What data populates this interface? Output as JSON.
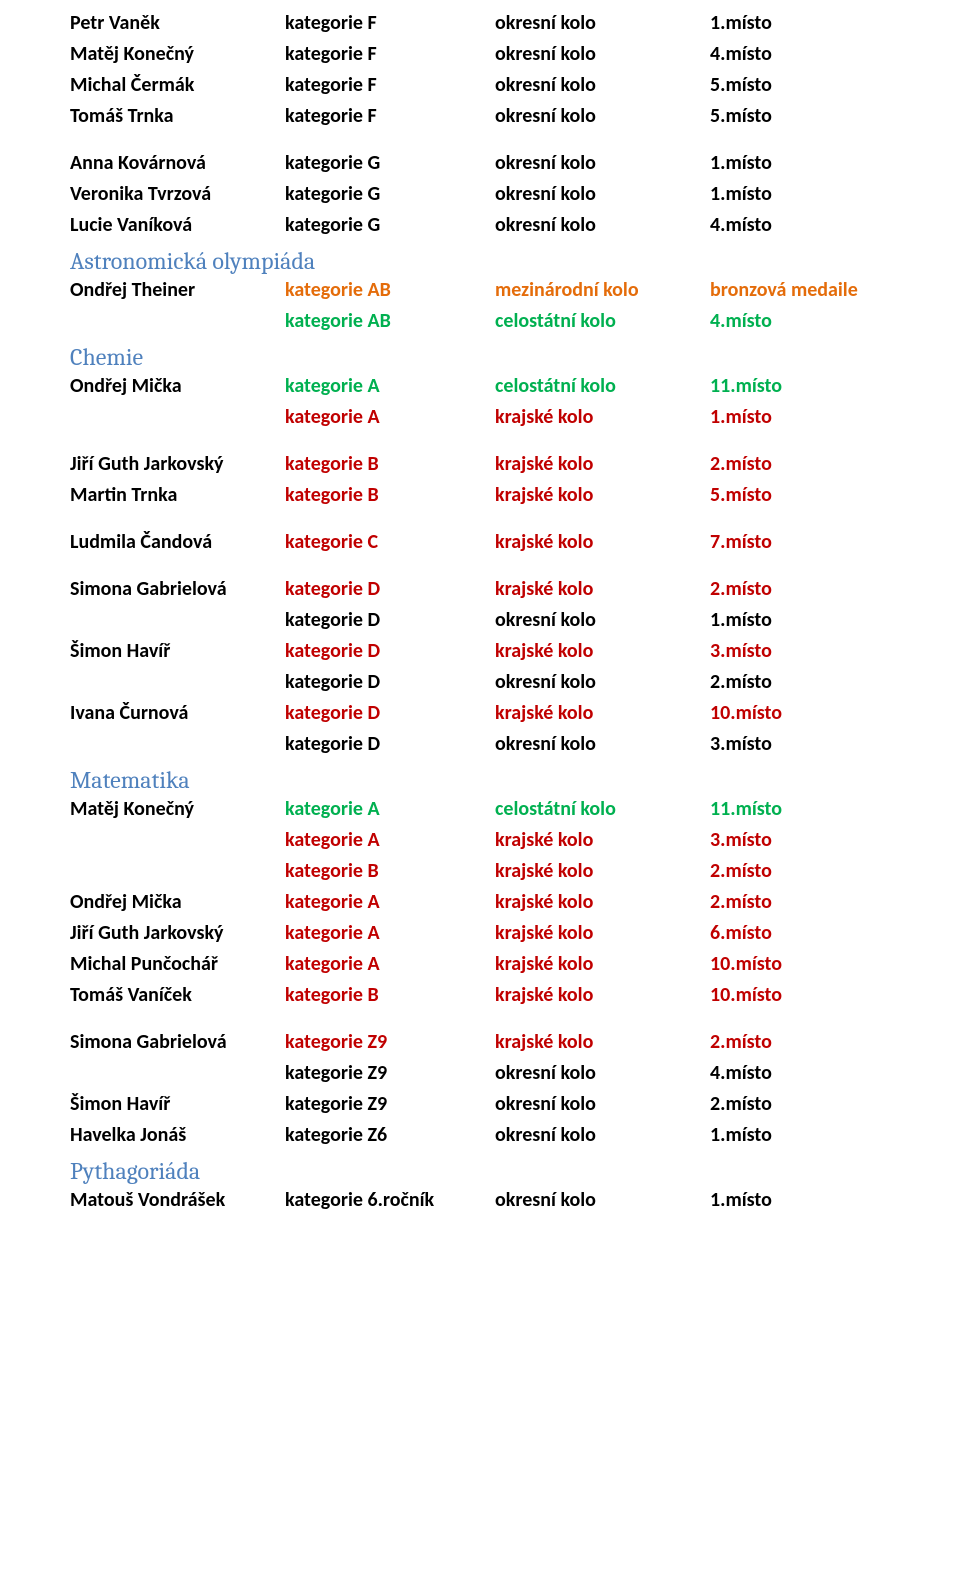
{
  "colors": {
    "black": "#000000",
    "red": "#c00000",
    "green": "#00b050",
    "orange": "#e46c0a",
    "heading": "#4f81bd"
  },
  "groups": [
    {
      "type": "rows",
      "rows": [
        {
          "c1": "Petr Vaněk",
          "c2": "kategorie F",
          "c3": "okresní kolo",
          "c4": "1.místo",
          "c2color": "#000000",
          "c3color": "#000000",
          "c4color": "#000000"
        },
        {
          "c1": "Matěj Konečný",
          "c2": "kategorie F",
          "c3": "okresní kolo",
          "c4": "4.místo",
          "c2color": "#000000",
          "c3color": "#000000",
          "c4color": "#000000"
        },
        {
          "c1": "Michal Čermák",
          "c2": "kategorie F",
          "c3": "okresní kolo",
          "c4": "5.místo",
          "c2color": "#000000",
          "c3color": "#000000",
          "c4color": "#000000"
        },
        {
          "c1": "Tomáš Trnka",
          "c2": "kategorie F",
          "c3": "okresní kolo",
          "c4": "5.místo",
          "c2color": "#000000",
          "c3color": "#000000",
          "c4color": "#000000"
        }
      ]
    },
    {
      "type": "gap"
    },
    {
      "type": "rows",
      "rows": [
        {
          "c1": "Anna Kovárnová",
          "c2": "kategorie G",
          "c3": "okresní kolo",
          "c4": "1.místo",
          "c2color": "#000000",
          "c3color": "#000000",
          "c4color": "#000000"
        },
        {
          "c1": "Veronika Tvrzová",
          "c2": "kategorie G",
          "c3": "okresní kolo",
          "c4": "1.místo",
          "c2color": "#000000",
          "c3color": "#000000",
          "c4color": "#000000"
        },
        {
          "c1": "Lucie Vaníková",
          "c2": "kategorie G",
          "c3": "okresní kolo",
          "c4": "4.místo",
          "c2color": "#000000",
          "c3color": "#000000",
          "c4color": "#000000"
        }
      ]
    },
    {
      "type": "heading",
      "text": "Astronomická olympiáda"
    },
    {
      "type": "rows",
      "rows": [
        {
          "c1": "Ondřej Theiner",
          "c2": "kategorie AB",
          "c3": "mezinárodní kolo",
          "c4": "bronzová medaile",
          "c2color": "#e46c0a",
          "c3color": "#e46c0a",
          "c4color": "#e46c0a"
        },
        {
          "c1": "",
          "c2": "kategorie AB",
          "c3": "celostátní kolo",
          "c4": "4.místo",
          "c2color": "#00b050",
          "c3color": "#00b050",
          "c4color": "#00b050"
        }
      ]
    },
    {
      "type": "heading",
      "text": "Chemie"
    },
    {
      "type": "rows",
      "rows": [
        {
          "c1": "Ondřej Mička",
          "c2": "kategorie A",
          "c3": "celostátní kolo",
          "c4": "11.místo",
          "c2color": "#00b050",
          "c3color": "#00b050",
          "c4color": "#00b050"
        },
        {
          "c1": "",
          "c2": "kategorie A",
          "c3": "krajské kolo",
          "c4": "1.místo",
          "c2color": "#c00000",
          "c3color": "#c00000",
          "c4color": "#c00000"
        }
      ]
    },
    {
      "type": "gap"
    },
    {
      "type": "rows",
      "rows": [
        {
          "c1": "Jiří Guth Jarkovský",
          "c2": "kategorie B",
          "c3": "krajské kolo",
          "c4": "2.místo",
          "c2color": "#c00000",
          "c3color": "#c00000",
          "c4color": "#c00000"
        },
        {
          "c1": "Martin Trnka",
          "c2": "kategorie B",
          "c3": "krajské kolo",
          "c4": "5.místo",
          "c2color": "#c00000",
          "c3color": "#c00000",
          "c4color": "#c00000"
        }
      ]
    },
    {
      "type": "gap"
    },
    {
      "type": "rows",
      "rows": [
        {
          "c1": "Ludmila Čandová",
          "c2": "kategorie C",
          "c3": "krajské kolo",
          "c4": "7.místo",
          "c2color": "#c00000",
          "c3color": "#c00000",
          "c4color": "#c00000"
        }
      ]
    },
    {
      "type": "gap"
    },
    {
      "type": "rows",
      "rows": [
        {
          "c1": "Simona Gabrielová",
          "c2": "kategorie D",
          "c3": "krajské kolo",
          "c4": "2.místo",
          "c2color": "#c00000",
          "c3color": "#c00000",
          "c4color": "#c00000"
        },
        {
          "c1": "",
          "c2": "kategorie D",
          "c3": "okresní kolo",
          "c4": "1.místo",
          "c2color": "#000000",
          "c3color": "#000000",
          "c4color": "#000000"
        },
        {
          "c1": "Šimon Havíř",
          "c2": "kategorie D",
          "c3": "krajské kolo",
          "c4": "3.místo",
          "c2color": "#c00000",
          "c3color": "#c00000",
          "c4color": "#c00000"
        },
        {
          "c1": "",
          "c2": "kategorie D",
          "c3": "okresní kolo",
          "c4": "2.místo",
          "c2color": "#000000",
          "c3color": "#000000",
          "c4color": "#000000"
        },
        {
          "c1": "Ivana Čurnová",
          "c2": "kategorie D",
          "c3": "krajské kolo",
          "c4": "10.místo",
          "c2color": "#c00000",
          "c3color": "#c00000",
          "c4color": "#c00000"
        },
        {
          "c1": "",
          "c2": "kategorie D",
          "c3": "okresní kolo",
          "c4": "3.místo",
          "c2color": "#000000",
          "c3color": "#000000",
          "c4color": "#000000"
        }
      ]
    },
    {
      "type": "heading",
      "text": "Matematika"
    },
    {
      "type": "rows",
      "rows": [
        {
          "c1": "Matěj Konečný",
          "c2": "kategorie A",
          "c3": "celostátní kolo",
          "c4": "11.místo",
          "c2color": "#00b050",
          "c3color": "#00b050",
          "c4color": "#00b050"
        },
        {
          "c1": "",
          "c2": "kategorie A",
          "c3": "krajské kolo",
          "c4": "3.místo",
          "c2color": "#c00000",
          "c3color": "#c00000",
          "c4color": "#c00000"
        },
        {
          "c1": "",
          "c2": "kategorie B",
          "c3": "krajské kolo",
          "c4": "2.místo",
          "c2color": "#c00000",
          "c3color": "#c00000",
          "c4color": "#c00000"
        },
        {
          "c1": "Ondřej Mička",
          "c2": "kategorie A",
          "c3": "krajské kolo",
          "c4": "2.místo",
          "c2color": "#c00000",
          "c3color": "#c00000",
          "c4color": "#c00000"
        },
        {
          "c1": "Jiří Guth Jarkovský",
          "c2": "kategorie A",
          "c3": "krajské kolo",
          "c4": "6.místo",
          "c2color": "#c00000",
          "c3color": "#c00000",
          "c4color": "#c00000"
        },
        {
          "c1": "Michal Punčochář",
          "c2": "kategorie A",
          "c3": "krajské kolo",
          "c4": "10.místo",
          "c2color": "#c00000",
          "c3color": "#c00000",
          "c4color": "#c00000"
        },
        {
          "c1": "Tomáš Vaníček",
          "c2": "kategorie B",
          "c3": "krajské kolo",
          "c4": "10.místo",
          "c2color": "#c00000",
          "c3color": "#c00000",
          "c4color": "#c00000"
        }
      ]
    },
    {
      "type": "gap"
    },
    {
      "type": "rows",
      "rows": [
        {
          "c1": "Simona Gabrielová",
          "c2": "kategorie Z9",
          "c3": "krajské kolo",
          "c4": "2.místo",
          "c2color": "#c00000",
          "c3color": "#c00000",
          "c4color": "#c00000"
        },
        {
          "c1": "",
          "c2": "kategorie Z9",
          "c3": "okresní kolo",
          "c4": "4.místo",
          "c2color": "#000000",
          "c3color": "#000000",
          "c4color": "#000000"
        },
        {
          "c1": "Šimon Havíř",
          "c2": "kategorie Z9",
          "c3": "okresní kolo",
          "c4": "2.místo",
          "c2color": "#000000",
          "c3color": "#000000",
          "c4color": "#000000"
        },
        {
          "c1": "Havelka Jonáš",
          "c2": "kategorie Z6",
          "c3": "okresní kolo",
          "c4": "1.místo",
          "c2color": "#000000",
          "c3color": "#000000",
          "c4color": "#000000"
        }
      ]
    },
    {
      "type": "heading",
      "text": "Pythagoriáda"
    },
    {
      "type": "rows",
      "rows": [
        {
          "c1": "Matouš Vondrášek",
          "c2": "kategorie 6.ročník",
          "c3": "okresní kolo",
          "c4": "1.místo",
          "c2color": "#000000",
          "c3color": "#000000",
          "c4color": "#000000"
        }
      ]
    }
  ]
}
